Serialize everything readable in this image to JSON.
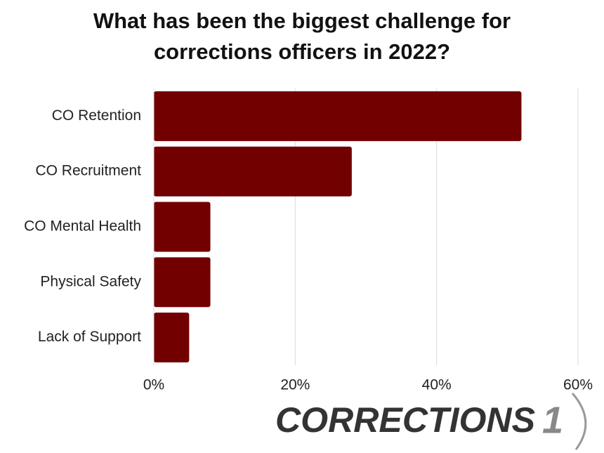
{
  "chart_data": {
    "type": "bar",
    "orientation": "horizontal",
    "title": "What has been the biggest challenge for corrections officers in 2022?",
    "categories": [
      "CO Retention",
      "CO Recruitment",
      "CO Mental Health",
      "Physical Safety",
      "Lack of Support"
    ],
    "values": [
      52,
      28,
      8,
      8,
      5
    ],
    "color": "#720000",
    "xlim": [
      0,
      60
    ],
    "xticks": [
      {
        "value": 0,
        "label": "0%"
      },
      {
        "value": 20,
        "label": "20%"
      },
      {
        "value": 40,
        "label": "40%"
      },
      {
        "value": 60,
        "label": "60%"
      }
    ],
    "grid": true,
    "logo": {
      "text": "CORRECTIONS",
      "number": "1"
    }
  }
}
